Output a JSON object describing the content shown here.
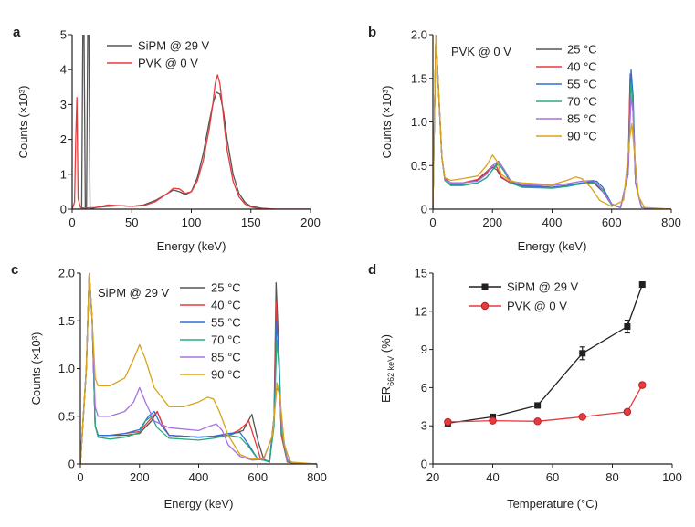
{
  "chart_data": [
    {
      "panel": "a",
      "type": "line",
      "xlabel": "Energy (keV)",
      "ylabel": "Counts (×10³)",
      "xlim": [
        0,
        200
      ],
      "ylim": [
        0,
        5
      ],
      "xticks": [
        0,
        50,
        100,
        150,
        200
      ],
      "yticks": [
        0,
        1,
        2,
        3,
        4,
        5
      ],
      "legend": "top-left",
      "series": [
        {
          "name": "SiPM @ 29 V",
          "color": "#555555",
          "x": [
            0,
            8,
            9,
            10,
            11,
            12,
            13,
            14,
            15,
            20,
            30,
            40,
            50,
            60,
            70,
            80,
            85,
            90,
            95,
            100,
            105,
            110,
            115,
            118,
            121,
            124,
            127,
            130,
            135,
            140,
            145,
            150,
            160,
            170,
            180,
            200
          ],
          "y": [
            0,
            0,
            5,
            5,
            0,
            0,
            5,
            5,
            0,
            0.05,
            0.08,
            0.1,
            0.08,
            0.12,
            0.25,
            0.45,
            0.55,
            0.5,
            0.42,
            0.5,
            0.9,
            1.6,
            2.5,
            3.0,
            3.35,
            3.3,
            2.8,
            2.0,
            1.0,
            0.45,
            0.2,
            0.08,
            0.02,
            0,
            0,
            0
          ]
        },
        {
          "name": "PVK @ 0 V",
          "color": "#e8393c",
          "x": [
            0,
            2,
            3,
            4,
            5,
            7,
            10,
            20,
            30,
            40,
            50,
            60,
            70,
            80,
            85,
            90,
            95,
            100,
            105,
            110,
            115,
            118,
            120,
            122,
            124,
            126,
            128,
            130,
            135,
            140,
            145,
            150,
            155,
            160,
            170,
            200
          ],
          "y": [
            0,
            0.2,
            2.0,
            3.2,
            0.3,
            0.05,
            0.03,
            0.05,
            0.12,
            0.1,
            0.08,
            0.1,
            0.22,
            0.45,
            0.6,
            0.58,
            0.45,
            0.5,
            0.8,
            1.4,
            2.3,
            3.0,
            3.6,
            3.85,
            3.6,
            3.0,
            2.3,
            1.7,
            0.8,
            0.35,
            0.15,
            0.06,
            0.03,
            0.02,
            0,
            0
          ]
        }
      ]
    },
    {
      "panel": "b",
      "type": "line",
      "annotation": "PVK @ 0 V",
      "xlabel": "Energy (keV)",
      "ylabel": "Counts (×10³)",
      "xlim": [
        0,
        800
      ],
      "ylim": [
        0,
        2.0
      ],
      "xticks": [
        0,
        200,
        400,
        600,
        800
      ],
      "yticks": [
        "0",
        "0.5",
        "1.0",
        "1.5",
        "2.0"
      ],
      "legend": "top-right",
      "series": [
        {
          "name": "25 °C",
          "color": "#555555",
          "x": [
            0,
            5,
            10,
            20,
            30,
            40,
            60,
            100,
            150,
            180,
            200,
            215,
            230,
            260,
            300,
            400,
            450,
            500,
            540,
            570,
            600,
            630,
            655,
            662,
            670,
            680,
            700,
            720,
            800
          ],
          "y": [
            0,
            1.0,
            2.0,
            1.3,
            0.6,
            0.35,
            0.3,
            0.3,
            0.33,
            0.42,
            0.48,
            0.45,
            0.36,
            0.3,
            0.27,
            0.25,
            0.27,
            0.3,
            0.3,
            0.2,
            0.05,
            0.02,
            0.4,
            1.5,
            1.3,
            0.3,
            0.02,
            0.01,
            0
          ]
        },
        {
          "name": "40 °C",
          "color": "#e8393c",
          "x": [
            0,
            5,
            10,
            20,
            30,
            40,
            60,
            100,
            150,
            180,
            200,
            215,
            230,
            260,
            300,
            400,
            450,
            500,
            540,
            570,
            600,
            630,
            655,
            662,
            670,
            680,
            700,
            720,
            800
          ],
          "y": [
            0,
            1.0,
            2.0,
            1.3,
            0.6,
            0.35,
            0.3,
            0.3,
            0.34,
            0.43,
            0.5,
            0.48,
            0.37,
            0.3,
            0.27,
            0.25,
            0.27,
            0.3,
            0.32,
            0.22,
            0.05,
            0.02,
            0.4,
            1.55,
            1.3,
            0.3,
            0.02,
            0.01,
            0
          ]
        },
        {
          "name": "55 °C",
          "color": "#2f6fd6",
          "x": [
            0,
            5,
            10,
            20,
            30,
            40,
            60,
            100,
            150,
            180,
            200,
            220,
            240,
            260,
            300,
            400,
            450,
            500,
            550,
            570,
            600,
            630,
            655,
            665,
            672,
            680,
            700,
            720,
            800
          ],
          "y": [
            0,
            1.0,
            2.0,
            1.3,
            0.6,
            0.33,
            0.28,
            0.28,
            0.3,
            0.36,
            0.45,
            0.55,
            0.45,
            0.32,
            0.26,
            0.25,
            0.27,
            0.3,
            0.32,
            0.25,
            0.06,
            0.02,
            0.4,
            1.6,
            1.3,
            0.3,
            0.02,
            0.01,
            0
          ]
        },
        {
          "name": "70 °C",
          "color": "#2bab7a",
          "x": [
            0,
            5,
            10,
            20,
            30,
            40,
            60,
            100,
            150,
            180,
            200,
            220,
            240,
            260,
            300,
            400,
            450,
            500,
            550,
            570,
            600,
            630,
            655,
            665,
            672,
            680,
            700,
            720,
            800
          ],
          "y": [
            0,
            1.0,
            2.0,
            1.3,
            0.6,
            0.33,
            0.27,
            0.27,
            0.3,
            0.36,
            0.45,
            0.52,
            0.43,
            0.3,
            0.25,
            0.24,
            0.26,
            0.29,
            0.3,
            0.22,
            0.05,
            0.02,
            0.4,
            1.45,
            1.2,
            0.3,
            0.02,
            0.01,
            0
          ]
        },
        {
          "name": "85 °C",
          "color": "#a772e0",
          "x": [
            0,
            5,
            10,
            20,
            30,
            40,
            60,
            100,
            150,
            180,
            200,
            220,
            240,
            260,
            300,
            400,
            450,
            500,
            540,
            560,
            600,
            630,
            655,
            665,
            672,
            680,
            700,
            720,
            800
          ],
          "y": [
            0,
            1.0,
            2.0,
            1.3,
            0.6,
            0.34,
            0.3,
            0.3,
            0.32,
            0.4,
            0.5,
            0.55,
            0.45,
            0.33,
            0.28,
            0.27,
            0.29,
            0.32,
            0.33,
            0.25,
            0.06,
            0.02,
            0.4,
            1.3,
            1.1,
            0.3,
            0.02,
            0.01,
            0
          ]
        },
        {
          "name": "90 °C",
          "color": "#d9a31a",
          "x": [
            0,
            5,
            10,
            20,
            30,
            40,
            60,
            100,
            150,
            180,
            200,
            215,
            230,
            260,
            300,
            400,
            450,
            480,
            500,
            530,
            560,
            600,
            640,
            660,
            668,
            675,
            690,
            710,
            800
          ],
          "y": [
            0,
            1.0,
            2.0,
            1.3,
            0.6,
            0.36,
            0.33,
            0.35,
            0.38,
            0.5,
            0.62,
            0.55,
            0.4,
            0.32,
            0.3,
            0.28,
            0.33,
            0.37,
            0.35,
            0.25,
            0.1,
            0.03,
            0.1,
            0.8,
            0.98,
            0.7,
            0.15,
            0.02,
            0
          ]
        }
      ]
    },
    {
      "panel": "c",
      "type": "line",
      "annotation": "SiPM @ 29 V",
      "xlabel": "Energy (keV)",
      "ylabel": "Counts (×10³)",
      "xlim": [
        0,
        800
      ],
      "ylim": [
        0,
        2.0
      ],
      "xticks": [
        0,
        200,
        400,
        600,
        800
      ],
      "yticks": [
        "0",
        "0.5",
        "1.0",
        "1.5",
        "2.0"
      ],
      "legend": "top-right",
      "series": [
        {
          "name": "25 °C",
          "color": "#555555",
          "x": [
            0,
            20,
            30,
            40,
            50,
            60,
            100,
            150,
            200,
            240,
            260,
            280,
            300,
            400,
            500,
            550,
            580,
            600,
            620,
            640,
            655,
            662,
            670,
            680,
            700,
            720,
            800
          ],
          "y": [
            0,
            1.0,
            2.0,
            1.5,
            0.4,
            0.3,
            0.3,
            0.3,
            0.32,
            0.45,
            0.55,
            0.4,
            0.3,
            0.28,
            0.3,
            0.35,
            0.52,
            0.25,
            0.05,
            0.02,
            0.5,
            1.9,
            1.3,
            0.3,
            0.02,
            0.01,
            0
          ]
        },
        {
          "name": "40 °C",
          "color": "#e8393c",
          "x": [
            0,
            20,
            30,
            40,
            50,
            60,
            100,
            150,
            200,
            240,
            260,
            280,
            300,
            400,
            500,
            540,
            570,
            590,
            610,
            640,
            655,
            662,
            670,
            680,
            700,
            720,
            800
          ],
          "y": [
            0,
            1.0,
            2.0,
            1.5,
            0.4,
            0.3,
            0.3,
            0.32,
            0.34,
            0.48,
            0.55,
            0.4,
            0.3,
            0.28,
            0.3,
            0.36,
            0.45,
            0.25,
            0.05,
            0.02,
            0.5,
            1.7,
            1.2,
            0.3,
            0.02,
            0.01,
            0
          ]
        },
        {
          "name": "55 °C",
          "color": "#2f6fd6",
          "x": [
            0,
            20,
            30,
            40,
            50,
            60,
            100,
            150,
            200,
            230,
            250,
            270,
            300,
            400,
            450,
            500,
            540,
            570,
            600,
            640,
            655,
            664,
            672,
            680,
            700,
            720,
            800
          ],
          "y": [
            0,
            1.0,
            2.0,
            1.5,
            0.4,
            0.3,
            0.3,
            0.32,
            0.36,
            0.5,
            0.55,
            0.42,
            0.3,
            0.28,
            0.29,
            0.32,
            0.33,
            0.2,
            0.05,
            0.03,
            0.5,
            1.5,
            1.1,
            0.35,
            0.03,
            0.01,
            0
          ]
        },
        {
          "name": "70 °C",
          "color": "#2bab7a",
          "x": [
            0,
            20,
            30,
            40,
            50,
            60,
            100,
            150,
            200,
            220,
            240,
            260,
            300,
            400,
            450,
            500,
            540,
            570,
            600,
            640,
            655,
            664,
            672,
            680,
            700,
            720,
            800
          ],
          "y": [
            0,
            1.0,
            2.0,
            1.5,
            0.4,
            0.28,
            0.26,
            0.28,
            0.33,
            0.45,
            0.5,
            0.38,
            0.27,
            0.25,
            0.27,
            0.3,
            0.28,
            0.18,
            0.05,
            0.03,
            0.4,
            1.3,
            1.0,
            0.35,
            0.03,
            0.01,
            0
          ]
        },
        {
          "name": "85 °C",
          "color": "#a772e0",
          "x": [
            0,
            20,
            30,
            40,
            50,
            60,
            100,
            150,
            180,
            200,
            220,
            250,
            300,
            400,
            440,
            460,
            480,
            500,
            540,
            580,
            620,
            650,
            664,
            672,
            685,
            700,
            720,
            800
          ],
          "y": [
            0,
            1.0,
            2.0,
            1.5,
            0.6,
            0.5,
            0.5,
            0.55,
            0.65,
            0.8,
            0.65,
            0.45,
            0.38,
            0.35,
            0.4,
            0.42,
            0.35,
            0.2,
            0.08,
            0.04,
            0.05,
            0.3,
            0.8,
            0.75,
            0.3,
            0.05,
            0.01,
            0
          ]
        },
        {
          "name": "90 °C",
          "color": "#d9a31a",
          "x": [
            0,
            20,
            30,
            40,
            50,
            60,
            100,
            150,
            180,
            200,
            220,
            250,
            300,
            350,
            400,
            430,
            450,
            470,
            500,
            540,
            580,
            620,
            650,
            665,
            675,
            690,
            710,
            800
          ],
          "y": [
            0,
            1.0,
            2.0,
            1.5,
            0.9,
            0.82,
            0.82,
            0.9,
            1.1,
            1.25,
            1.1,
            0.8,
            0.6,
            0.6,
            0.65,
            0.7,
            0.68,
            0.55,
            0.3,
            0.1,
            0.05,
            0.06,
            0.3,
            0.85,
            0.7,
            0.2,
            0.02,
            0
          ]
        }
      ]
    },
    {
      "panel": "d",
      "type": "line",
      "xlabel": "Temperature (°C)",
      "ylabel": "ER662 keV (%)",
      "ylabel_main": "ER",
      "ylabel_sub": "662 keV",
      "ylabel_tail": " (%)",
      "xlim": [
        20,
        100
      ],
      "ylim": [
        0,
        15
      ],
      "xticks": [
        20,
        40,
        60,
        80,
        100
      ],
      "yticks": [
        0,
        3,
        6,
        9,
        12,
        15
      ],
      "legend": "top-left",
      "series": [
        {
          "name": "SiPM @ 29 V",
          "color": "#231f20",
          "marker": "square",
          "x": [
            25,
            40,
            55,
            70,
            85,
            90
          ],
          "y": [
            3.2,
            3.7,
            4.6,
            8.7,
            10.8,
            14.1
          ],
          "yerr": [
            0.2,
            0.2,
            0.2,
            0.5,
            0.5,
            0.2
          ]
        },
        {
          "name": "PVK @ 0 V",
          "color": "#e8393c",
          "marker": "circle",
          "x": [
            25,
            40,
            55,
            70,
            85,
            90
          ],
          "y": [
            3.3,
            3.4,
            3.35,
            3.7,
            4.1,
            6.2
          ],
          "yerr": [
            0.1,
            0.1,
            0.1,
            0.1,
            0.1,
            0.2
          ]
        }
      ]
    }
  ]
}
